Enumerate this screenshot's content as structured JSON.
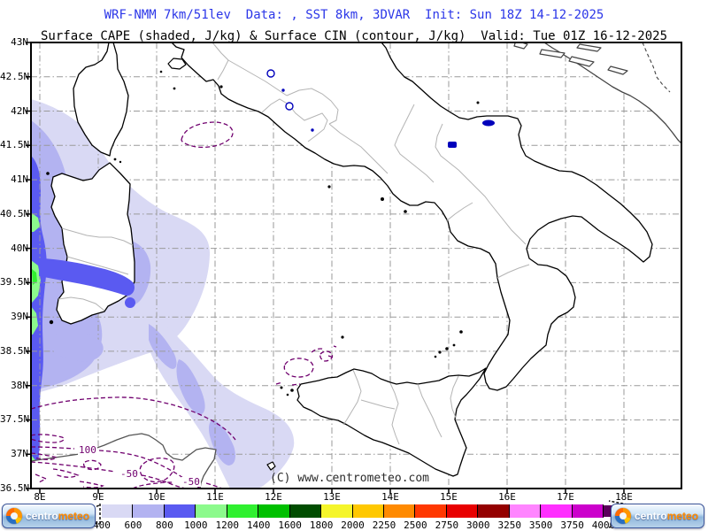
{
  "header": {
    "model_line": "WRF-NMM 7km/51lev  Data: , SST 8km, 3DVAR  Init: Sun 18Z 14-12-2025",
    "field_line": "Surface CAPE (shaded, J/kg) & Surface CIN (contour, J/kg)  Valid: Tue 01Z 16-12-2025"
  },
  "map": {
    "lat_labels": [
      "43N",
      "42.5N",
      "42N",
      "41.5N",
      "41N",
      "40.5N",
      "40N",
      "39.5N",
      "39N",
      "38.5N",
      "38N",
      "37.5N",
      "37N",
      "36.5N"
    ],
    "lon_labels": [
      "8E",
      "9E",
      "10E",
      "11E",
      "12E",
      "13E",
      "14E",
      "15E",
      "16E",
      "17E",
      "18E"
    ],
    "contour_labels": [
      "100",
      "-50",
      "-50"
    ],
    "copyright": "(C) www.centrometeo.com"
  },
  "colorbar": {
    "tick_labels": [
      "400",
      "600",
      "800",
      "1000",
      "1200",
      "1400",
      "1600",
      "1800",
      "2000",
      "2250",
      "2500",
      "2750",
      "3000",
      "3250",
      "3500",
      "3750",
      "4000"
    ],
    "cell_colors": [
      "#d9d9f4",
      "#b3b3f1",
      "#5a5af1",
      "#8cfa8c",
      "#30f030",
      "#00c000",
      "#004d00",
      "#f5f52b",
      "#ffc800",
      "#ff8a00",
      "#ff3800",
      "#e80000",
      "#940000",
      "#ff85ff",
      "#ff2fff",
      "#cc00cc"
    ],
    "arrow_color": "#5c005c"
  },
  "logo": {
    "brand_left": "centro",
    "brand_right": "meteo"
  },
  "chart_data": {
    "type": "map-contour",
    "title": "Surface CAPE (shaded, J/kg) & Surface CIN (contour, J/kg)",
    "model": "WRF-NMM 7km/51lev",
    "data_sources": "SST 8km, 3DVAR",
    "init_time": "Sun 18Z 14-12-2025",
    "valid_time": "Tue 01Z 16-12-2025",
    "region": {
      "lon_min_e": 8,
      "lon_max_e": 19,
      "lat_min_n": 36.5,
      "lat_max_n": 43,
      "area": "Italy / central Mediterranean"
    },
    "shaded_field": {
      "name": "Surface CAPE",
      "units": "J/kg",
      "scale_breaks": [
        400,
        600,
        800,
        1000,
        1200,
        1400,
        1600,
        1800,
        2000,
        2250,
        2500,
        2750,
        3000,
        3250,
        3500,
        3750,
        4000
      ],
      "max_shaded_region": "west of Sardinia (800-1400 J/kg band along 8E)",
      "pattern": "lavender-to-blue band over western Tyrrhenian Sea from 43N,8E southeast toward western Sicily; green maxima hugging 8E between 37N and 40N"
    },
    "contour_field": {
      "name": "Surface CIN",
      "units": "J/kg",
      "visible_labels": [
        100,
        -50,
        -50
      ],
      "pattern": "dashed purple contours over northern Tunisia / Sicily strait and a small closed contour northwest of Corsica"
    },
    "grid": true,
    "legend_position": "bottom"
  }
}
